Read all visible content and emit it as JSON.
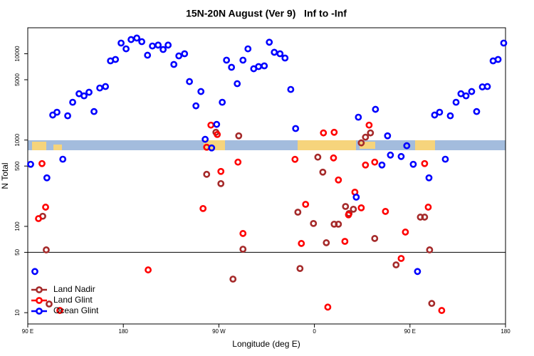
{
  "chart_data": {
    "type": "scatter",
    "title": "15N-20N August (Ver 9)   Inf to -Inf",
    "x_label": "Longitude (deg E)",
    "y_label": "N Total",
    "xlim": [
      90,
      540
    ],
    "ylim": [
      7.4,
      20000
    ],
    "log_y": true,
    "xticks": [
      {
        "value": 90,
        "label": "90 E"
      },
      {
        "value": 180,
        "label": "180"
      },
      {
        "value": 270,
        "label": "90 W"
      },
      {
        "value": 360,
        "label": "0"
      },
      {
        "value": 450,
        "label": "90 E"
      },
      {
        "value": 540,
        "label": "180"
      }
    ],
    "yticks": [
      10,
      50,
      100,
      500,
      1000,
      5000,
      10000
    ],
    "hline": 50,
    "legend": "bottom-left",
    "series": [
      {
        "name": "Land Nadir",
        "color": "#a52a2a",
        "x": [
          107.4,
          110.1,
          104.1,
          258.5,
          267.2,
          271.9,
          283.3,
          288.7,
          292.7,
          344.4,
          346.4,
          359.1,
          363.2,
          367.9,
          371.2,
          378.6,
          382.6,
          389.3,
          392.6,
          396.7,
          404.1,
          408.1,
          412.8,
          416.8,
          436.9,
          459.8,
          463.8,
          468.5,
          470.5
        ],
        "values": [
          53.4,
          12.6,
          131,
          401,
          1230,
          313,
          24.5,
          1120,
          54.4,
          146,
          32.5,
          108,
          634,
          425,
          64.6,
          106,
          106,
          170,
          141,
          158,
          927,
          1080,
          1210,
          72.4,
          35.8,
          128,
          128,
          53.4,
          12.8
        ]
      },
      {
        "name": "Land Glint",
        "color": "#ff0000",
        "x": [
          103.4,
          100.1,
          106.8,
          120.2,
          203.4,
          255.1,
          258.5,
          262.5,
          268.5,
          271.9,
          288,
          292.7,
          341.7,
          347.7,
          351.7,
          368.5,
          372.6,
          378,
          378.6,
          382.6,
          388.7,
          392.1,
          398.1,
          404.1,
          408.1,
          411.5,
          416.8,
          426.9,
          441.7,
          445.7,
          463.8,
          467.2,
          479.9
        ],
        "values": [
          534,
          123,
          167,
          10.6,
          31.3,
          161,
          826,
          1490,
          1160,
          433,
          555,
          82.7,
          598,
          63.4,
          180,
          1210,
          11.6,
          621,
          1230,
          345,
          67,
          136,
          249,
          164,
          514,
          1490,
          555,
          149,
          42.5,
          85.9,
          534,
          167,
          10.6
        ]
      },
      {
        "name": "Ocean Glint",
        "color": "#0000ff",
        "x": [
          92.7,
          96.7,
          108,
          113.5,
          117.5,
          123,
          127.6,
          132.3,
          138.3,
          143,
          147.7,
          152.4,
          157.8,
          163.2,
          167.9,
          172.6,
          177.9,
          182.6,
          187.3,
          192.7,
          197.4,
          202.8,
          207.4,
          212.8,
          217.5,
          222.2,
          227.6,
          232.3,
          237.7,
          242.3,
          248.4,
          253.1,
          257.1,
          263.2,
          267.9,
          273.2,
          277.2,
          281.9,
          287.3,
          292.7,
          297.4,
          302.8,
          307.4,
          312.8,
          317.5,
          322.2,
          327.6,
          332.3,
          337.7,
          342.3,
          399.4,
          401.4,
          417.5,
          423.6,
          428.9,
          431.6,
          441.7,
          447,
          453.1,
          457.1,
          467.9,
          473.2,
          477.9,
          483.3,
          488,
          493.4,
          498,
          502.8,
          508.1,
          512.8,
          518.2,
          522.9,
          528.3,
          533,
          538.3
        ],
        "values": [
          524,
          30,
          365,
          1950,
          2100,
          600,
          1910,
          2740,
          3440,
          3250,
          3580,
          2140,
          4010,
          4170,
          8270,
          8590,
          13300,
          11400,
          14600,
          15200,
          13800,
          9620,
          12300,
          12600,
          11200,
          12600,
          7520,
          9440,
          10000,
          4760,
          2490,
          3650,
          1020,
          811,
          1520,
          2740,
          8430,
          6970,
          4500,
          8430,
          11400,
          6700,
          7100,
          7240,
          13600,
          10400,
          10000,
          8920,
          3860,
          1360,
          218,
          1840,
          2270,
          514,
          1120,
          670,
          645,
          859,
          524,
          30,
          365,
          1950,
          2100,
          600,
          1910,
          2740,
          3440,
          3250,
          3650,
          2140,
          4130,
          4170,
          8270,
          8590,
          13300
        ]
      }
    ]
  }
}
